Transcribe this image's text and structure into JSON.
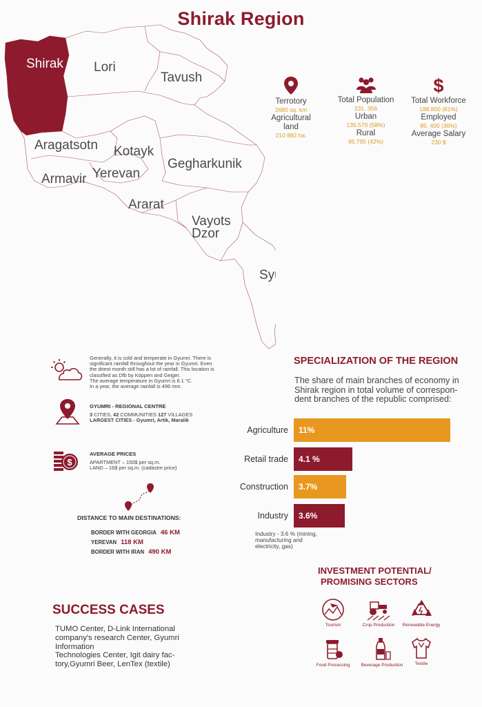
{
  "title": "Shirak Region",
  "map": {
    "regions": [
      "Shirak",
      "Lori",
      "Tavush",
      "Aragatsotn",
      "Kotayk",
      "Armavir",
      "Yerevan",
      "Gegharkunik",
      "Ararat",
      "Vayots",
      "Dzor",
      "Syunik"
    ]
  },
  "stats": {
    "territory": {
      "label": "Terrotory",
      "value": "2680 sq. km"
    },
    "agri_land": {
      "label": "Agricultural land",
      "value": "210 882 ha."
    },
    "population": {
      "label": "Total Population",
      "value": "231. 356"
    },
    "urban": {
      "label": "Urban",
      "value": "135.570 (58%)"
    },
    "rural": {
      "label": "Rural",
      "value": "95.795 (42%)"
    },
    "workforce": {
      "label": "Total Workforce",
      "value": "188.800 (81%)"
    },
    "employed": {
      "label": "Employed",
      "value": "85. 400 (36%)"
    },
    "salary": {
      "label": "Average Salary",
      "value": "230 $"
    }
  },
  "climate": {
    "lines": [
      "Generally, it is cold and temperate in Gyumri. There is",
      "significant rainfall throughout the year in Gyumri. Even",
      "the driest month still has a lot of rainfall. This location is",
      "classified as Dfb by Köppen and Geiger.",
      "The average temperature in Gyumri is 6.1 °C.",
      " In a year, the average rainfall is 496 mm."
    ]
  },
  "centre": {
    "title": "GYUMRI - REGIONAL CENTRE",
    "cities_num": "3",
    "cities_label": " CITIES, ",
    "communities_num": "42",
    "communities_label": " COMMUNITIES ",
    "villages_num": "127",
    "villages_label": " VILLAGES",
    "largest": "LARGEST CITIES - Gyumri, Artik, Maralik"
  },
  "prices": {
    "title": "AVERAGE PRICES",
    "apartment": "APARTMENT – 150$ per sq.m.",
    "land": "LAND – 16$ per sq.m. (cadastre price)"
  },
  "distances": {
    "title": "DISTANCE TO MAIN DESTINATIONS:",
    "rows": [
      {
        "label": "BORDER WITH GEORGIA",
        "value": "46 KM"
      },
      {
        "label": "YEREVAN",
        "value": "118 KM"
      },
      {
        "label": "BORDER WITH IRAN",
        "value": "490 KM"
      }
    ]
  },
  "specialization": {
    "title": "SPECIALIZATION OF THE REGION",
    "desc_lines": [
      "The share of main branches of economy in",
      "Shirak region  in total volume of correspon-",
      "dent branches of the republic comprised:"
    ],
    "note_lines": [
      "Industry - 3.6 %  (mining,",
      "manufacturing and",
      " electricity, gas)"
    ]
  },
  "chart_data": {
    "type": "bar",
    "orientation": "horizontal",
    "categories": [
      "Agriculture",
      "Retail trade",
      "Construction",
      "Industry"
    ],
    "values": [
      11,
      4.1,
      3.7,
      3.6
    ],
    "value_labels": [
      "11%",
      "4.1 %",
      "3.7%",
      "3.6%"
    ],
    "colors": [
      "#e8981e",
      "#8d1b2d",
      "#e8981e",
      "#8d1b2d"
    ],
    "title": "",
    "xlabel": "",
    "ylabel": ""
  },
  "success": {
    "title": "SUCCESS CASES",
    "lines": [
      "TUMO Center, D-Link International",
      "company's research Center, Gyumri",
      "Information",
      "Technologies Center, Igit dairy fac-",
      "tory,Gyumri Beer, LenTex (textile)"
    ]
  },
  "investment": {
    "title_line1": "INVESTMENT  POTENTIAL/",
    "title_line2": "PROMISING SECTORS",
    "sectors": [
      {
        "label": "Tourism",
        "icon": "tourism-icon"
      },
      {
        "label": "Crop Production",
        "icon": "tractor-icon"
      },
      {
        "label": "Renewable Energy",
        "icon": "recycle-icon"
      },
      {
        "label": "Food Processing",
        "icon": "food-processing-icon"
      },
      {
        "label": "Beverage Production",
        "icon": "beverage-icon"
      },
      {
        "label": "Textile",
        "icon": "textile-icon"
      }
    ]
  },
  "colors": {
    "maroon": "#8d1b2d",
    "orange": "#e8981e",
    "accent_text": "#e09a1c"
  }
}
